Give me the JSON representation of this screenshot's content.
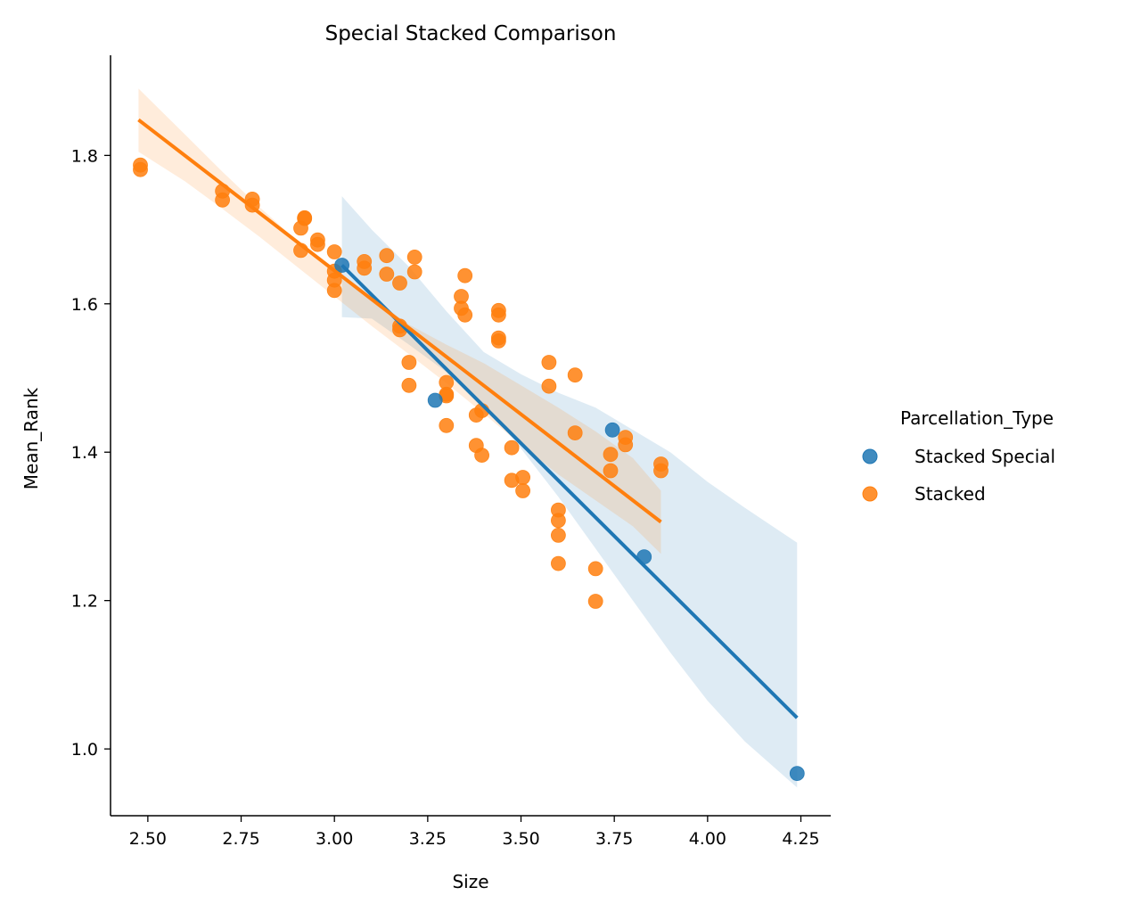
{
  "chart_data": {
    "type": "scatter",
    "title": "Special Stacked Comparison",
    "xlabel": "Size",
    "ylabel": "Mean_Rank",
    "xlim": [
      2.4,
      4.33
    ],
    "ylim": [
      0.91,
      1.935
    ],
    "x_ticks": [
      2.5,
      2.75,
      3.0,
      3.25,
      3.5,
      3.75,
      4.0,
      4.25
    ],
    "x_tick_labels": [
      "2.50",
      "2.75",
      "3.00",
      "3.25",
      "3.50",
      "3.75",
      "4.00",
      "4.25"
    ],
    "y_ticks": [
      1.0,
      1.2,
      1.4,
      1.6,
      1.8
    ],
    "y_tick_labels": [
      "1.0",
      "1.2",
      "1.4",
      "1.6",
      "1.8"
    ],
    "grid": false,
    "legend": {
      "title": "Parcellation_Type",
      "placement": "right"
    },
    "series": [
      {
        "name": "Stacked Special",
        "color": "#1f77b4",
        "points": [
          [
            3.02,
            1.652
          ],
          [
            3.27,
            1.47
          ],
          [
            3.745,
            1.43
          ],
          [
            3.83,
            1.259
          ],
          [
            4.24,
            0.967
          ]
        ],
        "regression": {
          "x": [
            3.02,
            4.24
          ],
          "y": [
            1.652,
            1.042
          ]
        },
        "ci_band": {
          "x": [
            3.02,
            3.1,
            3.2,
            3.3,
            3.4,
            3.5,
            3.6,
            3.7,
            3.8,
            3.9,
            4.0,
            4.1,
            4.24
          ],
          "upper": [
            1.745,
            1.7,
            1.65,
            1.59,
            1.535,
            1.505,
            1.48,
            1.46,
            1.43,
            1.4,
            1.36,
            1.325,
            1.278
          ],
          "lower": [
            1.582,
            1.58,
            1.545,
            1.508,
            1.465,
            1.405,
            1.34,
            1.27,
            1.2,
            1.13,
            1.065,
            1.01,
            0.948
          ]
        }
      },
      {
        "name": "Stacked",
        "color": "#ff7f0e",
        "points": [
          [
            2.48,
            1.787
          ],
          [
            2.48,
            1.781
          ],
          [
            2.7,
            1.752
          ],
          [
            2.7,
            1.74
          ],
          [
            2.78,
            1.741
          ],
          [
            2.78,
            1.733
          ],
          [
            2.91,
            1.702
          ],
          [
            2.91,
            1.672
          ],
          [
            2.92,
            1.716
          ],
          [
            2.92,
            1.715
          ],
          [
            2.955,
            1.686
          ],
          [
            2.955,
            1.68
          ],
          [
            3.0,
            1.67
          ],
          [
            3.0,
            1.644
          ],
          [
            3.0,
            1.632
          ],
          [
            3.0,
            1.618
          ],
          [
            3.08,
            1.657
          ],
          [
            3.08,
            1.648
          ],
          [
            3.14,
            1.665
          ],
          [
            3.14,
            1.64
          ],
          [
            3.175,
            1.628
          ],
          [
            3.175,
            1.57
          ],
          [
            3.175,
            1.565
          ],
          [
            3.2,
            1.521
          ],
          [
            3.2,
            1.49
          ],
          [
            3.215,
            1.663
          ],
          [
            3.215,
            1.643
          ],
          [
            3.3,
            1.494
          ],
          [
            3.3,
            1.478
          ],
          [
            3.3,
            1.476
          ],
          [
            3.3,
            1.436
          ],
          [
            3.34,
            1.61
          ],
          [
            3.34,
            1.594
          ],
          [
            3.35,
            1.638
          ],
          [
            3.35,
            1.585
          ],
          [
            3.38,
            1.45
          ],
          [
            3.38,
            1.409
          ],
          [
            3.395,
            1.456
          ],
          [
            3.395,
            1.396
          ],
          [
            3.44,
            1.591
          ],
          [
            3.44,
            1.585
          ],
          [
            3.44,
            1.554
          ],
          [
            3.44,
            1.55
          ],
          [
            3.475,
            1.406
          ],
          [
            3.475,
            1.362
          ],
          [
            3.505,
            1.366
          ],
          [
            3.505,
            1.348
          ],
          [
            3.575,
            1.521
          ],
          [
            3.575,
            1.489
          ],
          [
            3.6,
            1.322
          ],
          [
            3.6,
            1.308
          ],
          [
            3.6,
            1.288
          ],
          [
            3.6,
            1.25
          ],
          [
            3.645,
            1.504
          ],
          [
            3.645,
            1.426
          ],
          [
            3.7,
            1.243
          ],
          [
            3.7,
            1.199
          ],
          [
            3.74,
            1.397
          ],
          [
            3.74,
            1.375
          ],
          [
            3.78,
            1.42
          ],
          [
            3.78,
            1.41
          ],
          [
            3.875,
            1.384
          ],
          [
            3.875,
            1.375
          ]
        ],
        "regression": {
          "x": [
            2.475,
            3.875
          ],
          "y": [
            1.848,
            1.306
          ]
        },
        "ci_band": {
          "x": [
            2.475,
            2.6,
            2.7,
            2.8,
            2.9,
            3.0,
            3.1,
            3.2,
            3.3,
            3.4,
            3.5,
            3.6,
            3.7,
            3.8,
            3.875
          ],
          "upper": [
            1.89,
            1.828,
            1.778,
            1.73,
            1.685,
            1.645,
            1.608,
            1.572,
            1.545,
            1.52,
            1.49,
            1.46,
            1.428,
            1.392,
            1.348
          ],
          "lower": [
            1.805,
            1.765,
            1.728,
            1.69,
            1.65,
            1.61,
            1.57,
            1.532,
            1.493,
            1.452,
            1.41,
            1.37,
            1.335,
            1.3,
            1.263
          ]
        }
      }
    ]
  }
}
